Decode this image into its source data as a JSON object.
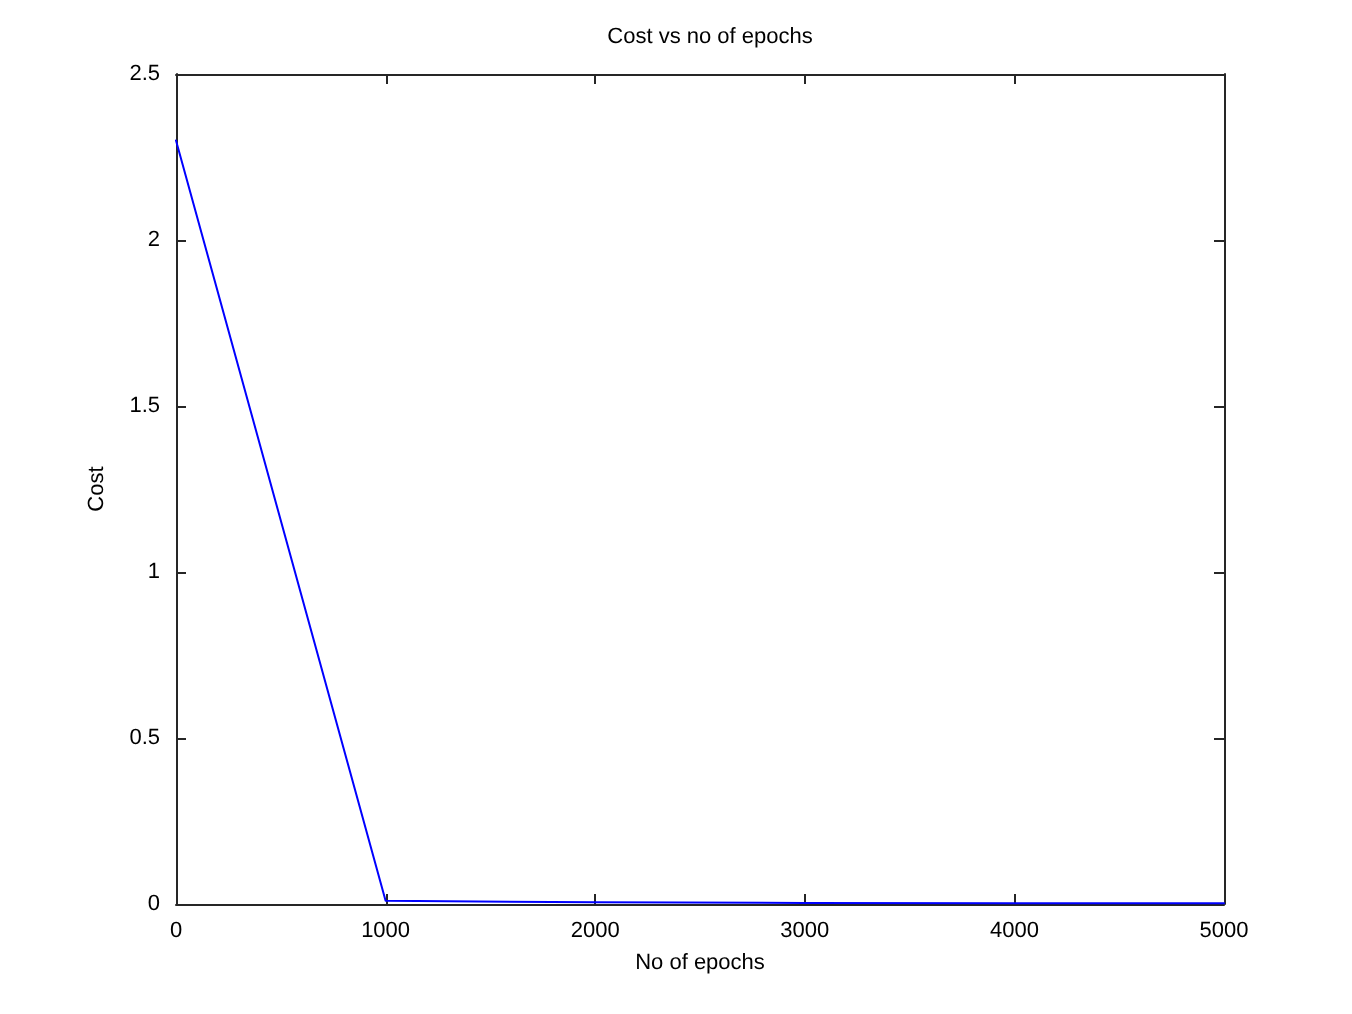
{
  "chart_data": {
    "type": "line",
    "title": "Cost vs no of epochs",
    "xlabel": "No of epochs",
    "ylabel": "Cost",
    "x": [
      0,
      1000,
      2000,
      3000,
      4000,
      5000
    ],
    "series": [
      {
        "color": "#0000ff",
        "values": [
          2.3,
          0.01,
          0.005,
          0.003,
          0.002,
          0.002
        ]
      }
    ],
    "xlim": [
      0,
      5000
    ],
    "xticks": [
      0,
      1000,
      2000,
      3000,
      4000,
      5000
    ],
    "ylim": [
      0,
      2.5
    ],
    "yticks": [
      0,
      0.5,
      1,
      1.5,
      2,
      2.5
    ],
    "grid": false,
    "marker": "none",
    "line_style": "solid"
  }
}
